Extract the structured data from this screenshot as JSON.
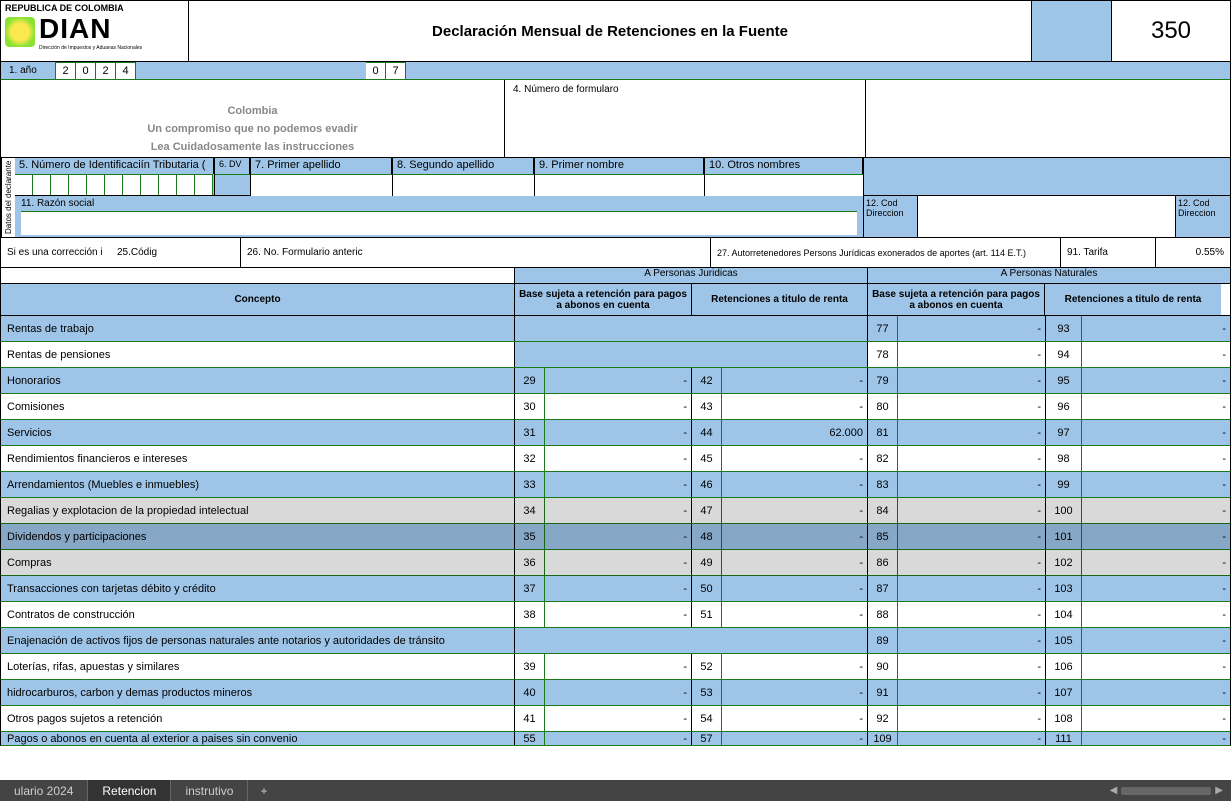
{
  "header": {
    "republic": "REPUBLICA DE COLOMBIA",
    "org": "DIAN",
    "org_sub": "Dirección de Impuestos y Aduanas Nacionales",
    "title": "Declaración Mensual de Retenciones en la Fuente",
    "form_code": "350"
  },
  "year": {
    "label": "1. año",
    "digits": [
      "2",
      "0",
      "2",
      "4"
    ],
    "extra": [
      "0",
      "7"
    ]
  },
  "info": {
    "country": "Colombia",
    "slogan": "Un compromiso que no podemos evadir",
    "instr": "Lea Cuidadosamente las instrucciones",
    "num_form": "4. Número de formularo"
  },
  "declarante": {
    "rot": "Datos del declarante",
    "nit": "5. Número de Identificaciín Tributaria (",
    "dv": "6. DV",
    "apellido1": "7. Primer apellido",
    "apellido2": "8. Segundo apellido",
    "nombre1": "9. Primer nombre",
    "otros": "10. Otros nombres",
    "razon": "11. Razón social",
    "cod_dir": "12. Cod Direccion"
  },
  "correccion": {
    "label": "Si es una corrección i",
    "cod": "25.Códig",
    "ant": "26. No. Formulario anteric",
    "autorr": "27. Autorretenedores Persons Jurídicas exonerados de aportes (art. 114 E.T.)",
    "tarifa_l": "91. Tarifa",
    "tarifa_v": "0.55%"
  },
  "table": {
    "juridicas": "A Personas Juridicas",
    "naturales": "A Personas Naturales",
    "concepto": "Concepto",
    "base": "Base sujeta a retención para pagos a abonos en cuenta",
    "ret": "Retenciones a titulo de renta"
  },
  "rows": [
    {
      "c": "Rentas de trabajo",
      "blue": 1,
      "merged": 1,
      "n3": "77",
      "v3": "-",
      "n4": "93",
      "v4": "-"
    },
    {
      "c": "Rentas de pensiones",
      "blue": 0,
      "merged": 1,
      "n3": "78",
      "v3": "-",
      "n4": "94",
      "v4": "-"
    },
    {
      "c": "Honorarios",
      "blue": 1,
      "n1": "29",
      "v1": "-",
      "n2": "42",
      "v2": "-",
      "n3": "79",
      "v3": "-",
      "n4": "95",
      "v4": "-"
    },
    {
      "c": "Comisiones",
      "blue": 0,
      "n1": "30",
      "v1": "-",
      "n2": "43",
      "v2": "-",
      "n3": "80",
      "v3": "-",
      "n4": "96",
      "v4": "-"
    },
    {
      "c": "Servicios",
      "blue": 1,
      "n1": "31",
      "v1": "-",
      "n2": "44",
      "v2": "62.000",
      "n3": "81",
      "v3": "-",
      "n4": "97",
      "v4": "-"
    },
    {
      "c": "Rendimientos financieros e intereses",
      "blue": 0,
      "n1": "32",
      "v1": "-",
      "n2": "45",
      "v2": "-",
      "n3": "82",
      "v3": "-",
      "n4": "98",
      "v4": "-"
    },
    {
      "c": "Arrendamientos (Muebles e inmuebles)",
      "blue": 1,
      "n1": "33",
      "v1": "-",
      "n2": "46",
      "v2": "-",
      "n3": "83",
      "v3": "-",
      "n4": "99",
      "v4": "-"
    },
    {
      "c": "Regalias y explotacion de la propiedad intelectual",
      "blue": 0,
      "sel": 1,
      "n1": "34",
      "v1": "-",
      "n2": "47",
      "v2": "-",
      "n3": "84",
      "v3": "-",
      "n4": "100",
      "v4": "-"
    },
    {
      "c": "Dividendos y participaciones",
      "blue": 1,
      "sel": 1,
      "n1": "35",
      "v1": "-",
      "n2": "48",
      "v2": "-",
      "n3": "85",
      "v3": "-",
      "n4": "101",
      "v4": "-"
    },
    {
      "c": "Compras",
      "blue": 0,
      "sel": 1,
      "n1": "36",
      "v1": "-",
      "n2": "49",
      "v2": "-",
      "n3": "86",
      "v3": "-",
      "n4": "102",
      "v4": "-"
    },
    {
      "c": "Transacciones con tarjetas débito y crédito",
      "blue": 1,
      "n1": "37",
      "v1": "-",
      "n2": "50",
      "v2": "-",
      "n3": "87",
      "v3": "-",
      "n4": "103",
      "v4": "-"
    },
    {
      "c": "Contratos de construcción",
      "blue": 0,
      "n1": "38",
      "v1": "-",
      "n2": "51",
      "v2": "-",
      "n3": "88",
      "v3": "-",
      "n4": "104",
      "v4": "-"
    },
    {
      "c": "Enajenación de activos fijos de personas naturales ante notarios y autoridades de tránsito",
      "blue": 1,
      "merged2": 1,
      "n3": "89",
      "v3": "-",
      "n4": "105",
      "v4": "-"
    },
    {
      "c": "Loterías, rifas, apuestas y similares",
      "blue": 0,
      "n1": "39",
      "v1": "-",
      "n2": "52",
      "v2": "-",
      "n3": "90",
      "v3": "-",
      "n4": "106",
      "v4": "-"
    },
    {
      "c": "hidrocarburos, carbon y demas productos mineros",
      "blue": 1,
      "n1": "40",
      "v1": "-",
      "n2": "53",
      "v2": "-",
      "n3": "91",
      "v3": "-",
      "n4": "107",
      "v4": "-"
    },
    {
      "c": "Otros pagos sujetos a retención",
      "blue": 0,
      "n1": "41",
      "v1": "-",
      "n2": "54",
      "v2": "-",
      "n3": "92",
      "v3": "-",
      "n4": "108",
      "v4": "-"
    },
    {
      "c": "Pagos o abonos en cuenta al exterior a paises sin convenio",
      "blue": 1,
      "partial": 1,
      "n1": "55",
      "v1": "-",
      "n2": "57",
      "v2": "-",
      "n3": "109",
      "v3": "-",
      "n4": "111",
      "v4": "-"
    }
  ],
  "tabs": {
    "t1": "ulario 2024",
    "t2": "Retencion",
    "t3": "instrutivo"
  },
  "colors": {
    "blue": "#9ec5e8",
    "green": "#1a7a1a",
    "border": "#000000"
  }
}
